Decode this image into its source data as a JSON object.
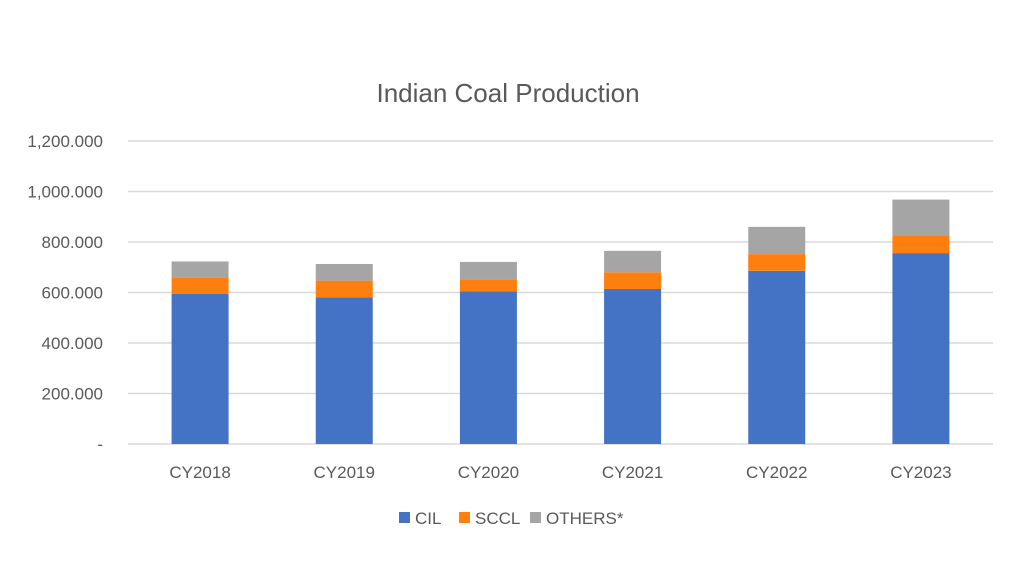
{
  "chart_data": {
    "type": "bar",
    "stacked": true,
    "title": "Indian Coal Production",
    "xlabel": "",
    "ylabel": "",
    "ylim": [
      0,
      1200
    ],
    "yticks": [
      0,
      200,
      400,
      600,
      800,
      1000,
      1200
    ],
    "ytick_labels": [
      "-",
      "200.000",
      "400.000",
      "600.000",
      "800.000",
      "1,000.000",
      "1,200.000"
    ],
    "grid": true,
    "legend_position": "bottom",
    "categories": [
      "CY2018",
      "CY2019",
      "CY2020",
      "CY2021",
      "CY2022",
      "CY2023"
    ],
    "series": [
      {
        "name": "CIL",
        "color": "#4472C4",
        "values": [
          594,
          581,
          605,
          614,
          686,
          756
        ]
      },
      {
        "name": "SCCL",
        "color": "#FF7F0E",
        "values": [
          66,
          66,
          47,
          66,
          66,
          70
        ]
      },
      {
        "name": "OTHERS*",
        "color": "#A5A5A5",
        "values": [
          63,
          66,
          69,
          85,
          108,
          142
        ]
      }
    ]
  }
}
